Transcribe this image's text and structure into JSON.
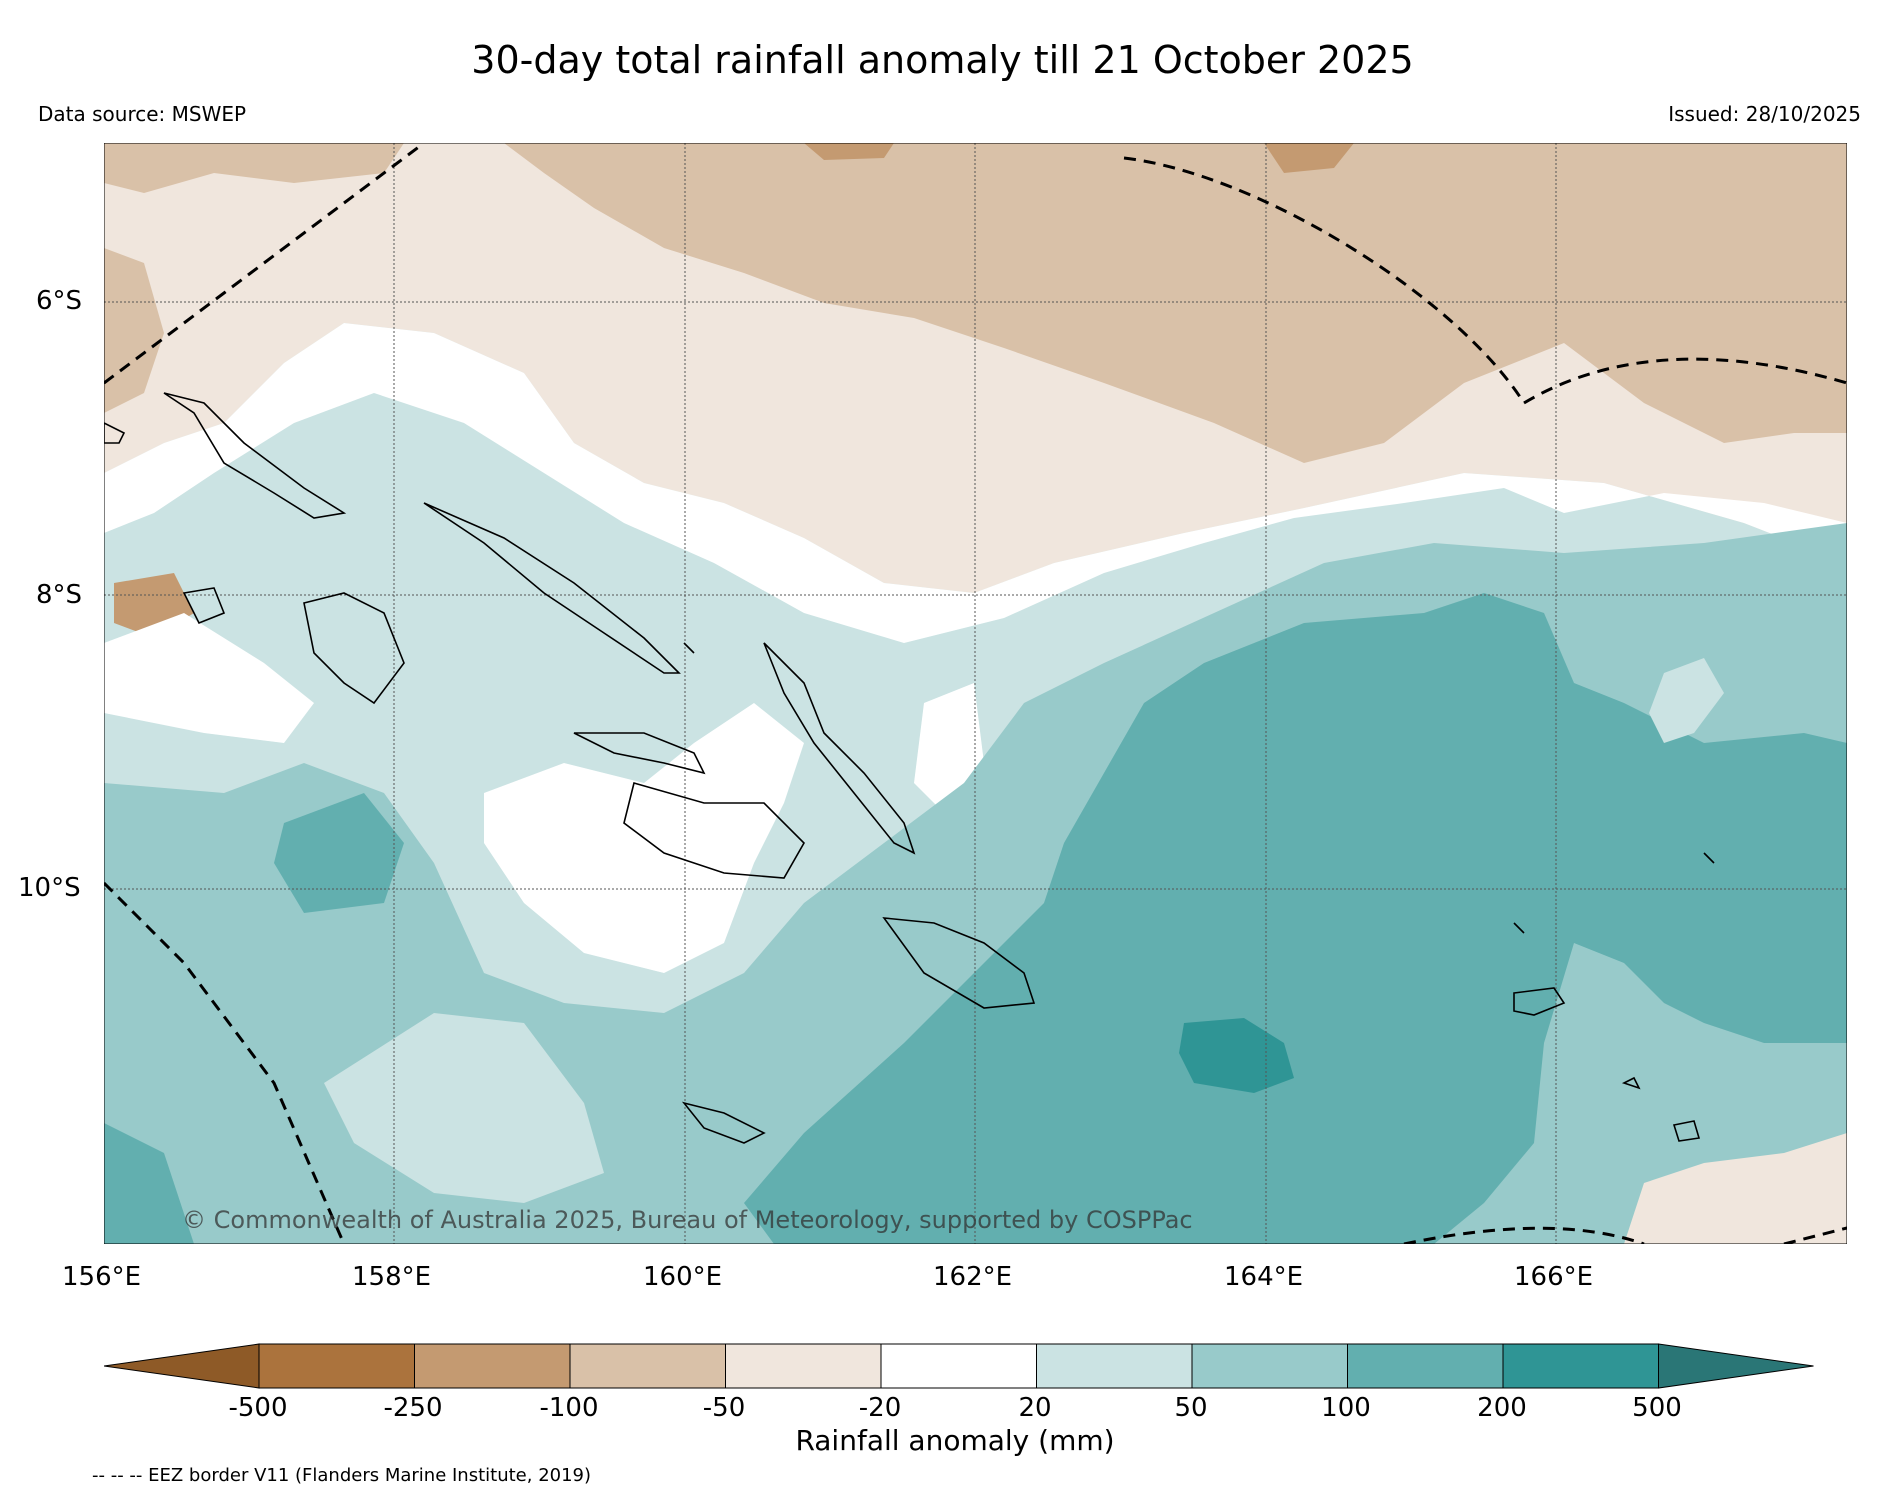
{
  "title": "30-day total rainfall anomaly till 21 October 2025",
  "data_source": "Data source: MSWEP",
  "issued": "Issued: 28/10/2025",
  "copyright": "© Commonwealth of Australia 2025, Bureau of Meteorology, supported by COSPPac",
  "latitudes": [
    "6°S",
    "8°S",
    "10°S"
  ],
  "longitudes": [
    "156°E",
    "158°E",
    "160°E",
    "162°E",
    "164°E",
    "166°E"
  ],
  "colorbar": {
    "label": "Rainfall anomaly (mm)",
    "ticks": [
      "-500",
      "-250",
      "-100",
      "-50",
      "-20",
      "20",
      "50",
      "100",
      "200",
      "500"
    ],
    "colors": [
      "#8e5a27",
      "#ab733d",
      "#c49a71",
      "#d9c1a8",
      "#f0e6dd",
      "#ffffff",
      "#cbe3e3",
      "#98caca",
      "#62afaf",
      "#2f9595",
      "#2a7676"
    ]
  },
  "legend_note": "-- -- -- EEZ border V11 (Flanders Marine Institute, 2019)",
  "palette": {
    "dry_strong": "#c49a71",
    "dry": "#d9c1a8",
    "dry_light": "#f0e6dd",
    "neutral": "#ffffff",
    "wet_light": "#cbe3e3",
    "wet": "#98caca",
    "wet_strong": "#62afaf",
    "wet_very_strong": "#2f9595",
    "coast": "#000000"
  }
}
